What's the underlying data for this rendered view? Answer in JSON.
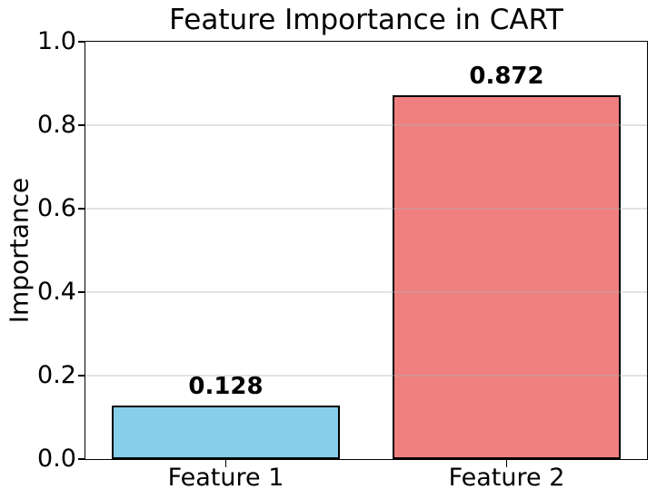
{
  "chart_data": {
    "type": "bar",
    "title": "Feature Importance in CART",
    "categories": [
      "Feature 1",
      "Feature 2"
    ],
    "values": [
      0.128,
      0.872
    ],
    "value_labels": [
      "0.128",
      "0.872"
    ],
    "bar_colors": [
      "#87CEEB",
      "#F08080"
    ],
    "bar_edge_color": "#000000",
    "xlabel": "",
    "ylabel": "Importance",
    "ylim": [
      0.0,
      1.0
    ],
    "yticks": [
      0.0,
      0.2,
      0.4,
      0.6,
      0.8,
      1.0
    ],
    "ytick_labels": [
      "0.0",
      "0.2",
      "0.4",
      "0.6",
      "0.8",
      "1.0"
    ],
    "grid": "horizontal gridlines at y ticks, light gray, drawn over bars",
    "grid_color": "rgba(176,176,176,0.35)",
    "legend_position": "none",
    "background_color": "#ffffff"
  }
}
